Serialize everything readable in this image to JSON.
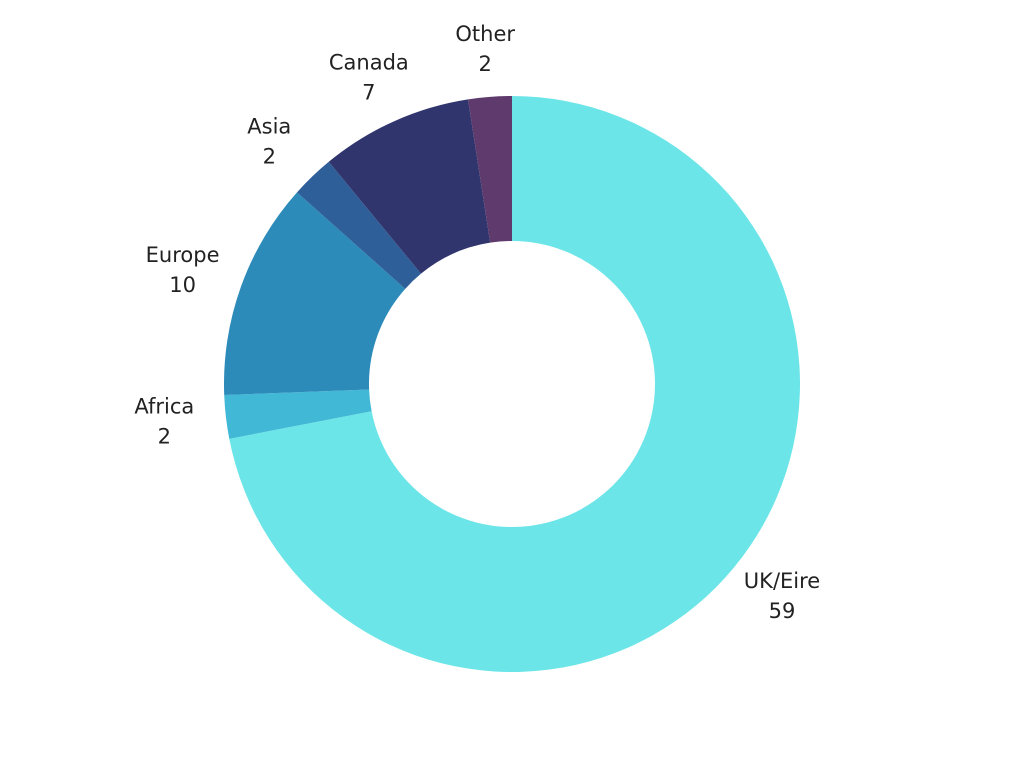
{
  "chart_data": {
    "type": "donut",
    "categories": [
      "UK/Eire",
      "Africa",
      "Europe",
      "Asia",
      "Canada",
      "Other"
    ],
    "values": [
      59,
      2,
      10,
      2,
      7,
      2
    ],
    "colors": [
      "#6ce5e8",
      "#41b8d5",
      "#2d8bba",
      "#2f5f98",
      "#31356e",
      "#5e3b6c"
    ]
  }
}
